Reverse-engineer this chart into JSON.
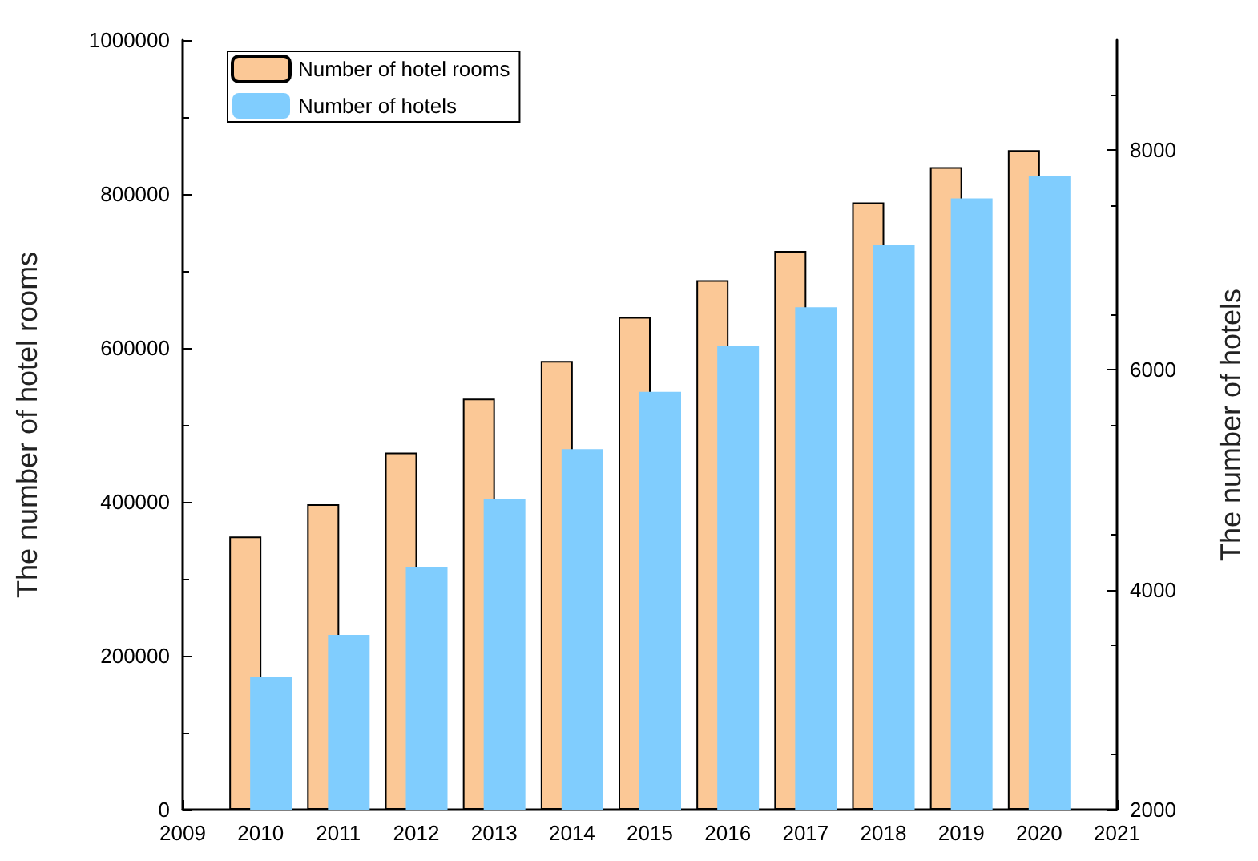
{
  "chart_data": {
    "type": "bar",
    "ylabel": "The number of hotel rooms",
    "y2label": "The number of hotels",
    "x": [
      2010,
      2011,
      2012,
      2013,
      2014,
      2015,
      2016,
      2017,
      2018,
      2019,
      2020
    ],
    "xlim": [
      2009,
      2021
    ],
    "xticks": [
      2009,
      2010,
      2011,
      2012,
      2013,
      2014,
      2015,
      2016,
      2017,
      2018,
      2019,
      2020,
      2021
    ],
    "ylim": [
      0,
      1000000
    ],
    "yticks": [
      0,
      200000,
      400000,
      600000,
      800000,
      1000000
    ],
    "y2lim": [
      2000,
      9000
    ],
    "y2ticks": [
      2000,
      4000,
      6000,
      8000
    ],
    "series": [
      {
        "name": "Number of hotel rooms",
        "color": "#fbc896",
        "values": [
          355000,
          397000,
          464000,
          534000,
          583000,
          640000,
          688000,
          726000,
          789000,
          835000,
          857000
        ]
      },
      {
        "name": "Number of hotels",
        "color": "#80cdfe",
        "axis": "y2",
        "values": [
          3210,
          3590,
          4210,
          4830,
          5280,
          5800,
          6220,
          6570,
          7140,
          7560,
          7760
        ]
      }
    ],
    "legend": "top left",
    "grid": false
  }
}
